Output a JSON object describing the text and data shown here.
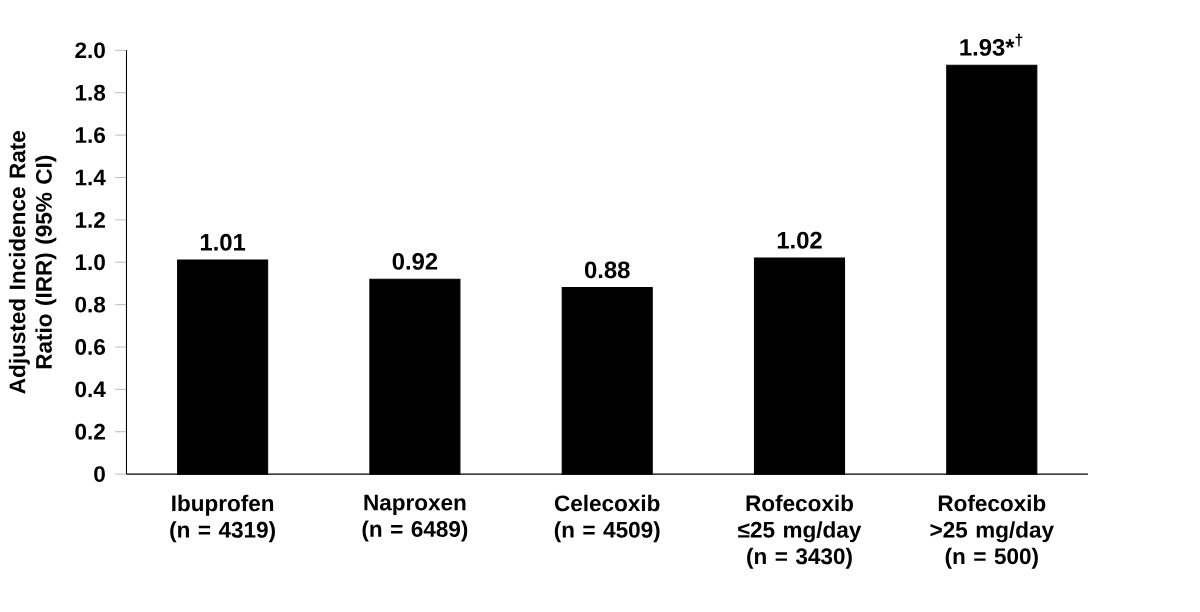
{
  "chart_data": {
    "type": "bar",
    "ylabel": "Adjusted Incidence Rate Ratio (IRR) (95% CI)",
    "categories": [
      "Ibuprofen (n = 4319)",
      "Naproxen (n = 6489)",
      "Celecoxib (n = 4509)",
      "Rofecoxib ≤25 mg/day (n = 3430)",
      "Rofecoxib >25 mg/day (n = 500)"
    ],
    "values": [
      1.01,
      0.92,
      0.88,
      1.02,
      1.93
    ],
    "color": "#000000",
    "value_labels": [
      "1.01",
      "0.92",
      "0.88",
      "1.02",
      "1.93*$^{†}$"
    ],
    "ylim": [
      0,
      2.0
    ],
    "yticks": [
      0,
      0.2,
      0.4,
      0.6,
      0.8,
      {
        "value": 1.0,
        "label": "1.0"
      },
      1.2,
      1.4,
      1.6,
      1.8,
      {
        "value": 2.0,
        "label": "2.0"
      }
    ],
    "grid": false
  }
}
